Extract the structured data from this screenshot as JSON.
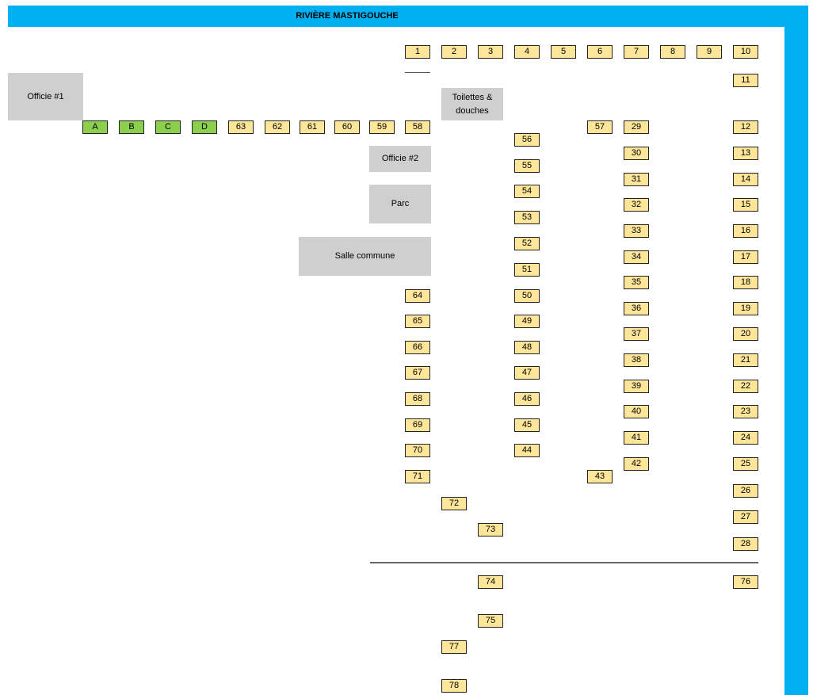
{
  "title": "RIVIÈRE MASTIGOUCHE",
  "buildings": [
    "Officie #1",
    "Toilettes & douches",
    "Officie #2",
    "Parc",
    "Salle commune"
  ],
  "sites": [
    {
      "label": "1",
      "color": "#fde59a"
    },
    {
      "label": "2",
      "color": "#fde59a"
    },
    {
      "label": "3",
      "color": "#fde59a"
    },
    {
      "label": "4",
      "color": "#fde59a"
    },
    {
      "label": "5",
      "color": "#fde59a"
    },
    {
      "label": "6",
      "color": "#fde59a"
    },
    {
      "label": "7",
      "color": "#fde59a"
    },
    {
      "label": "8",
      "color": "#fde59a"
    },
    {
      "label": "9",
      "color": "#fde59a"
    },
    {
      "label": "10",
      "color": "#fde59a"
    },
    {
      "label": "11",
      "color": "#fde59a"
    },
    {
      "label": "A",
      "color": "#8ccf4f"
    },
    {
      "label": "B",
      "color": "#8ccf4f"
    },
    {
      "label": "C",
      "color": "#8ccf4f"
    },
    {
      "label": "D",
      "color": "#8ccf4f"
    },
    {
      "label": "63",
      "color": "#fde59a"
    },
    {
      "label": "62",
      "color": "#fde59a"
    },
    {
      "label": "61",
      "color": "#fde59a"
    },
    {
      "label": "60",
      "color": "#fde59a"
    },
    {
      "label": "59",
      "color": "#fde59a"
    },
    {
      "label": "58",
      "color": "#fde59a"
    },
    {
      "label": "57",
      "color": "#fde59a"
    },
    {
      "label": "29",
      "color": "#fde59a"
    },
    {
      "label": "12",
      "color": "#fde59a"
    },
    {
      "label": "56",
      "color": "#fde59a"
    },
    {
      "label": "55",
      "color": "#fde59a"
    },
    {
      "label": "54",
      "color": "#fde59a"
    },
    {
      "label": "53",
      "color": "#fde59a"
    },
    {
      "label": "52",
      "color": "#fde59a"
    },
    {
      "label": "51",
      "color": "#fde59a"
    },
    {
      "label": "50",
      "color": "#fde59a"
    },
    {
      "label": "49",
      "color": "#fde59a"
    },
    {
      "label": "48",
      "color": "#fde59a"
    },
    {
      "label": "47",
      "color": "#fde59a"
    },
    {
      "label": "46",
      "color": "#fde59a"
    },
    {
      "label": "45",
      "color": "#fde59a"
    },
    {
      "label": "44",
      "color": "#fde59a"
    },
    {
      "label": "30",
      "color": "#fde59a"
    },
    {
      "label": "31",
      "color": "#fde59a"
    },
    {
      "label": "32",
      "color": "#fde59a"
    },
    {
      "label": "33",
      "color": "#fde59a"
    },
    {
      "label": "34",
      "color": "#fde59a"
    },
    {
      "label": "35",
      "color": "#fde59a"
    },
    {
      "label": "36",
      "color": "#fde59a"
    },
    {
      "label": "37",
      "color": "#fde59a"
    },
    {
      "label": "38",
      "color": "#fde59a"
    },
    {
      "label": "39",
      "color": "#fde59a"
    },
    {
      "label": "40",
      "color": "#fde59a"
    },
    {
      "label": "41",
      "color": "#fde59a"
    },
    {
      "label": "42",
      "color": "#fde59a"
    },
    {
      "label": "13",
      "color": "#fde59a"
    },
    {
      "label": "14",
      "color": "#fde59a"
    },
    {
      "label": "15",
      "color": "#fde59a"
    },
    {
      "label": "16",
      "color": "#fde59a"
    },
    {
      "label": "17",
      "color": "#fde59a"
    },
    {
      "label": "18",
      "color": "#fde59a"
    },
    {
      "label": "19",
      "color": "#fde59a"
    },
    {
      "label": "20",
      "color": "#fde59a"
    },
    {
      "label": "21",
      "color": "#fde59a"
    },
    {
      "label": "22",
      "color": "#fde59a"
    },
    {
      "label": "23",
      "color": "#fde59a"
    },
    {
      "label": "24",
      "color": "#fde59a"
    },
    {
      "label": "25",
      "color": "#fde59a"
    },
    {
      "label": "26",
      "color": "#fde59a"
    },
    {
      "label": "27",
      "color": "#fde59a"
    },
    {
      "label": "28",
      "color": "#fde59a"
    },
    {
      "label": "76",
      "color": "#fde59a"
    },
    {
      "label": "64",
      "color": "#fde59a"
    },
    {
      "label": "65",
      "color": "#fde59a"
    },
    {
      "label": "66",
      "color": "#fde59a"
    },
    {
      "label": "67",
      "color": "#fde59a"
    },
    {
      "label": "68",
      "color": "#fde59a"
    },
    {
      "label": "69",
      "color": "#fde59a"
    },
    {
      "label": "70",
      "color": "#fde59a"
    },
    {
      "label": "71",
      "color": "#fde59a"
    },
    {
      "label": "43",
      "color": "#fde59a"
    },
    {
      "label": "72",
      "color": "#fde59a"
    },
    {
      "label": "73",
      "color": "#fde59a"
    },
    {
      "label": "74",
      "color": "#fde59a"
    },
    {
      "label": "75",
      "color": "#fde59a"
    },
    {
      "label": "77",
      "color": "#fde59a"
    },
    {
      "label": "78",
      "color": "#fde59a"
    }
  ]
}
